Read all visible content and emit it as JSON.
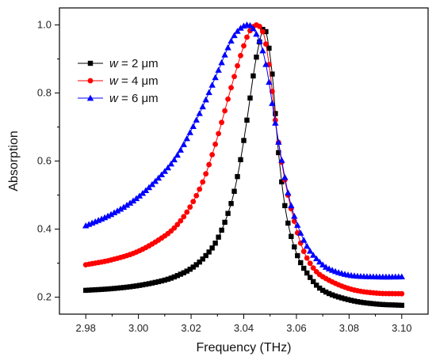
{
  "chart_data": {
    "type": "line",
    "xlabel": "Frequency (THz)",
    "ylabel": "Absorption",
    "xlim": [
      2.97,
      3.11
    ],
    "ylim": [
      0.15,
      1.05
    ],
    "xticks": [
      "2.98",
      "3.00",
      "3.02",
      "3.04",
      "3.06",
      "3.08",
      "3.10"
    ],
    "yticks": [
      "0.2",
      "0.4",
      "0.6",
      "0.8",
      "1.0"
    ],
    "grid": false,
    "legend_position": "top-left",
    "series": [
      {
        "name": "w = 2 μm",
        "legend_var": "w",
        "legend_rest": " = 2 μm",
        "color": "#000000",
        "marker": "square",
        "x": [
          2.98,
          2.99,
          3.0,
          3.01,
          3.015,
          3.02,
          3.025,
          3.03,
          3.035,
          3.038,
          3.041,
          3.044,
          3.046,
          3.0475,
          3.049,
          3.051,
          3.053,
          3.056,
          3.06,
          3.065,
          3.07,
          3.08,
          3.09,
          3.1
        ],
        "y": [
          0.22,
          0.225,
          0.234,
          0.25,
          0.264,
          0.284,
          0.317,
          0.37,
          0.47,
          0.57,
          0.71,
          0.87,
          0.95,
          0.99,
          0.96,
          0.84,
          0.64,
          0.45,
          0.33,
          0.26,
          0.22,
          0.192,
          0.18,
          0.176
        ]
      },
      {
        "name": "w = 4 μm",
        "legend_var": "w",
        "legend_rest": " = 4 μm",
        "color": "#ff0000",
        "marker": "circle",
        "x": [
          2.98,
          2.99,
          3.0,
          3.01,
          3.015,
          3.02,
          3.025,
          3.03,
          3.035,
          3.038,
          3.041,
          3.043,
          3.045,
          3.0465,
          3.048,
          3.05,
          3.052,
          3.055,
          3.058,
          3.062,
          3.066,
          3.07,
          3.08,
          3.09,
          3.1
        ],
        "y": [
          0.295,
          0.31,
          0.335,
          0.38,
          0.415,
          0.47,
          0.55,
          0.67,
          0.81,
          0.89,
          0.96,
          0.99,
          1.0,
          0.99,
          0.96,
          0.86,
          0.72,
          0.57,
          0.46,
          0.35,
          0.29,
          0.26,
          0.225,
          0.212,
          0.21
        ]
      },
      {
        "name": "w = 6 μm",
        "legend_var": "w",
        "legend_rest": " = 6 μm",
        "color": "#0000ff",
        "marker": "triangle",
        "x": [
          2.98,
          2.99,
          3.0,
          3.01,
          3.015,
          3.02,
          3.025,
          3.03,
          3.035,
          3.038,
          3.041,
          3.043,
          3.045,
          3.047,
          3.049,
          3.051,
          3.054,
          3.057,
          3.06,
          3.064,
          3.068,
          3.072,
          3.08,
          3.09,
          3.1
        ],
        "y": [
          0.41,
          0.445,
          0.495,
          0.57,
          0.62,
          0.69,
          0.77,
          0.86,
          0.95,
          0.985,
          1.0,
          0.995,
          0.97,
          0.93,
          0.86,
          0.76,
          0.62,
          0.5,
          0.42,
          0.35,
          0.31,
          0.285,
          0.265,
          0.26,
          0.26
        ]
      }
    ]
  }
}
